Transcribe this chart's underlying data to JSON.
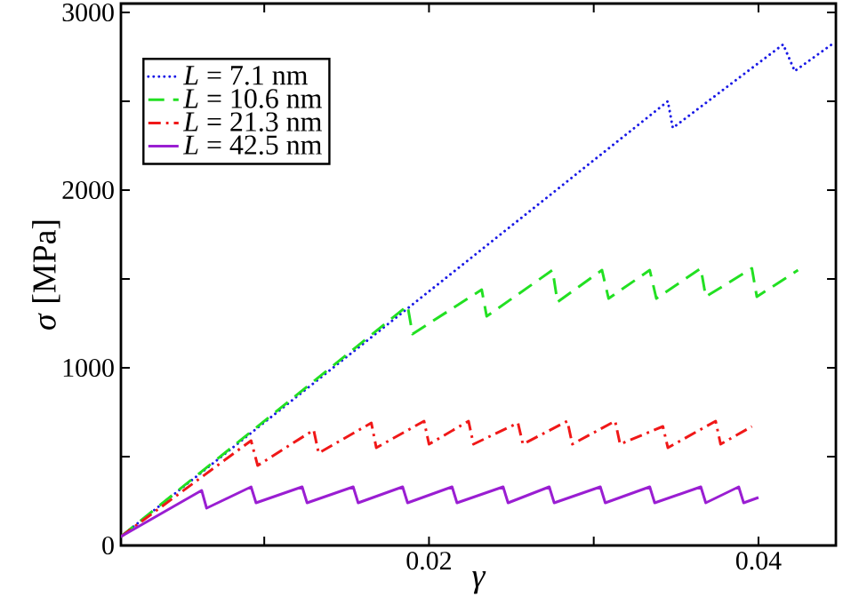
{
  "chart_data": {
    "type": "line",
    "xlabel": "γ",
    "ylabel": "*σ* [MPa]",
    "xlim": [
      0.0013,
      0.0447
    ],
    "xticks": [
      {
        "value": 0.01,
        "label": null
      },
      0.02,
      {
        "value": 0.03,
        "label": null
      },
      0.04
    ],
    "ylim": [
      0,
      3050
    ],
    "yticks": [
      0,
      {
        "value": 500,
        "label": null
      },
      1000,
      {
        "value": 1500,
        "label": null
      },
      2000,
      {
        "value": 2500,
        "label": null
      },
      3000
    ],
    "legend": "top left",
    "grid": false,
    "series": [
      {
        "name": "*L* =   7.1 nm",
        "color": "#1a1ae6",
        "line_style": "dotted",
        "x": [
          0.0013,
          0.0345,
          0.0348,
          0.0415,
          0.0422,
          0.0446
        ],
        "values": [
          50,
          2500,
          2350,
          2820,
          2670,
          2830
        ]
      },
      {
        "name": "*L* = 10.6 nm",
        "color": "#22e022",
        "line_style": "dashed",
        "x": [
          0.0013,
          0.0187,
          0.019,
          0.0232,
          0.0235,
          0.0275,
          0.0278,
          0.0305,
          0.0309,
          0.0334,
          0.0338,
          0.0365,
          0.0368,
          0.0396,
          0.0399,
          0.0424
        ],
        "values": [
          50,
          1350,
          1190,
          1440,
          1290,
          1550,
          1370,
          1550,
          1390,
          1550,
          1390,
          1560,
          1400,
          1560,
          1400,
          1550
        ]
      },
      {
        "name": "*L* = 21.3 nm",
        "color": "#f01818",
        "line_style": "dashdot",
        "x": [
          0.0013,
          0.0092,
          0.0096,
          0.013,
          0.0133,
          0.0165,
          0.0168,
          0.0197,
          0.02,
          0.0224,
          0.0227,
          0.0254,
          0.0257,
          0.0284,
          0.0287,
          0.0313,
          0.0316,
          0.0342,
          0.0345,
          0.0374,
          0.0377,
          0.0396
        ],
        "values": [
          50,
          590,
          450,
          650,
          520,
          690,
          550,
          700,
          570,
          700,
          570,
          690,
          570,
          700,
          570,
          700,
          570,
          670,
          550,
          700,
          570,
          670
        ]
      },
      {
        "name": "*L* = 42.5 nm",
        "color": "#9a1ed2",
        "line_style": "solid",
        "x": [
          0.0013,
          0.0062,
          0.0065,
          0.0092,
          0.0095,
          0.0123,
          0.0126,
          0.0154,
          0.0157,
          0.0184,
          0.0187,
          0.0214,
          0.0217,
          0.0245,
          0.0248,
          0.0273,
          0.0276,
          0.0304,
          0.0307,
          0.0334,
          0.0337,
          0.0365,
          0.0368,
          0.0388,
          0.0391,
          0.04
        ],
        "values": [
          50,
          310,
          210,
          330,
          240,
          330,
          240,
          330,
          240,
          330,
          240,
          330,
          240,
          330,
          240,
          330,
          240,
          330,
          240,
          330,
          240,
          330,
          240,
          330,
          240,
          270
        ]
      }
    ]
  }
}
